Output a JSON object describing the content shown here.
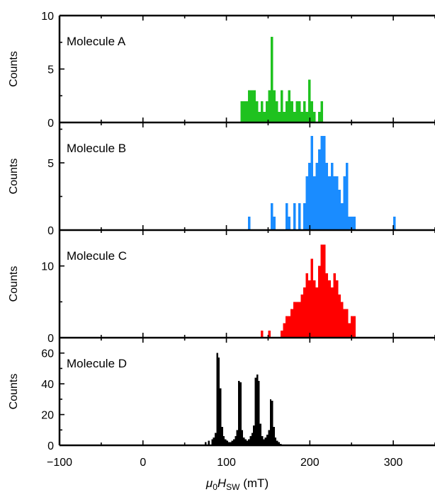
{
  "figure": {
    "xlabel": {
      "mu": "μ",
      "sub0": "0",
      "H": "H",
      "subSW": "SW",
      "unit": " (mT)"
    },
    "xlim": [
      -100,
      350
    ],
    "xticks": [
      -100,
      0,
      100,
      200,
      300
    ],
    "xtick_labels": [
      "−100",
      "0",
      "100",
      "200",
      "300"
    ]
  },
  "chart_data": [
    {
      "type": "bar",
      "label": "Molecule A",
      "ylabel": "Counts",
      "ylim": [
        0,
        10
      ],
      "yticks": [
        0,
        5,
        10
      ],
      "color": "#1fc21f",
      "bin_width": 3,
      "x": [
        117,
        120,
        123,
        126,
        129,
        132,
        135,
        138,
        141,
        144,
        147,
        150,
        153,
        156,
        159,
        162,
        165,
        168,
        171,
        174,
        177,
        180,
        183,
        186,
        189,
        192,
        195,
        198,
        201,
        204,
        207,
        210,
        213
      ],
      "values": [
        2,
        2,
        2,
        3,
        3,
        3,
        2,
        1,
        2,
        1,
        2,
        3,
        8,
        3,
        2,
        1,
        3,
        1,
        2,
        3,
        2,
        1,
        2,
        2,
        1,
        2,
        1,
        4,
        2,
        1,
        0,
        1,
        2
      ]
    },
    {
      "type": "bar",
      "label": "Molecule B",
      "ylabel": "Counts",
      "ylim": [
        0,
        8
      ],
      "yticks": [
        0,
        5
      ],
      "color": "#1a8cff",
      "bin_width": 3,
      "x": [
        126,
        153,
        156,
        171,
        174,
        180,
        186,
        192,
        195,
        198,
        201,
        204,
        207,
        210,
        213,
        216,
        219,
        222,
        225,
        228,
        231,
        234,
        237,
        240,
        243,
        246,
        249,
        252,
        300
      ],
      "values": [
        1,
        2,
        1,
        2,
        1,
        2,
        2,
        2,
        4,
        5,
        7,
        4,
        5,
        6,
        7,
        7,
        5,
        4,
        5,
        4,
        4,
        3,
        2,
        4,
        5,
        1,
        1,
        1,
        1
      ]
    },
    {
      "type": "bar",
      "label": "Molecule C",
      "ylabel": "Counts",
      "ylim": [
        0,
        15
      ],
      "yticks": [
        0,
        10
      ],
      "color": "#ff0000",
      "bin_width": 3,
      "x": [
        141,
        150,
        165,
        168,
        171,
        174,
        177,
        180,
        183,
        186,
        189,
        192,
        195,
        198,
        201,
        204,
        207,
        210,
        213,
        216,
        219,
        222,
        225,
        228,
        231,
        234,
        237,
        240,
        243,
        246,
        249,
        252
      ],
      "values": [
        1,
        1,
        1,
        2,
        3,
        3,
        4,
        5,
        5,
        5,
        6,
        7,
        9,
        8,
        11,
        8,
        7,
        10,
        13,
        13,
        9,
        8,
        7,
        9,
        8,
        6,
        5,
        4,
        4,
        2,
        3,
        3
      ]
    },
    {
      "type": "bar",
      "label": "Molecule D",
      "ylabel": "Counts",
      "ylim": [
        0,
        70
      ],
      "yticks": [
        0,
        20,
        40,
        60
      ],
      "color": "#000000",
      "bin_width": 2,
      "x": [
        74,
        78,
        82,
        84,
        86,
        88,
        90,
        92,
        94,
        96,
        98,
        100,
        102,
        104,
        106,
        108,
        110,
        112,
        114,
        116,
        118,
        120,
        122,
        124,
        126,
        128,
        130,
        132,
        134,
        136,
        138,
        140,
        142,
        144,
        146,
        148,
        150,
        152,
        154,
        156,
        158,
        160,
        162,
        164
      ],
      "values": [
        2,
        3,
        4,
        5,
        8,
        60,
        57,
        37,
        12,
        6,
        4,
        3,
        2,
        2,
        3,
        4,
        6,
        10,
        42,
        41,
        10,
        5,
        4,
        3,
        4,
        6,
        8,
        13,
        44,
        46,
        42,
        14,
        6,
        4,
        5,
        7,
        10,
        30,
        29,
        12,
        5,
        3,
        2,
        1
      ]
    }
  ]
}
